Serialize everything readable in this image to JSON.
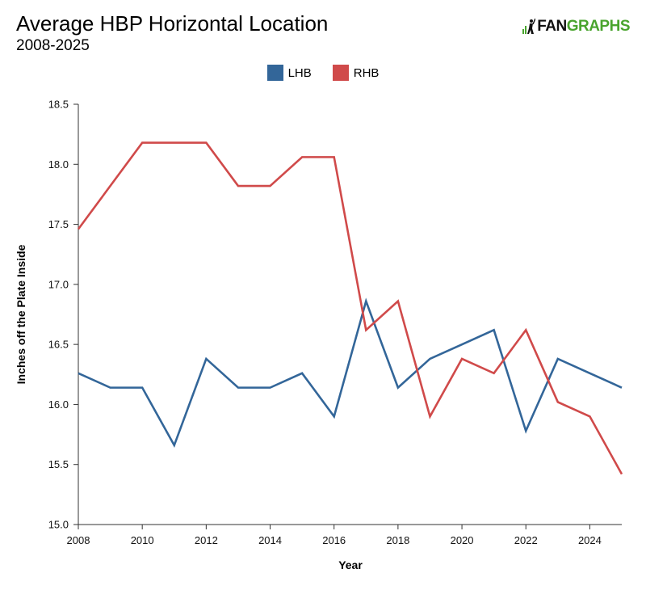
{
  "header": {
    "title": "Average HBP Horizontal Location",
    "subtitle": "2008-2025",
    "logo_fan": "FAN",
    "logo_graphs": "GRAPHS"
  },
  "colors": {
    "LHB": "#336699",
    "RHB": "#d04a4a",
    "logo_green": "#4aa42e"
  },
  "chart_data": {
    "type": "line",
    "title": "Average HBP Horizontal Location",
    "subtitle": "2008-2025",
    "xlabel": "Year",
    "ylabel": "Inches off the Plate Inside",
    "x": [
      2008,
      2009,
      2010,
      2011,
      2012,
      2013,
      2014,
      2015,
      2016,
      2017,
      2018,
      2019,
      2020,
      2021,
      2022,
      2023,
      2024,
      2025
    ],
    "xlim": [
      2008,
      2025
    ],
    "ylim": [
      15.0,
      18.5
    ],
    "x_ticks": [
      "2008",
      "2010",
      "2012",
      "2014",
      "2016",
      "2018",
      "2020",
      "2022",
      "2024"
    ],
    "y_ticks": [
      "15.0",
      "15.5",
      "16.0",
      "16.5",
      "17.0",
      "17.5",
      "18.0",
      "18.5"
    ],
    "grid": false,
    "legend_position": "top-center",
    "series": [
      {
        "name": "LHB",
        "values": [
          16.26,
          16.14,
          16.14,
          15.66,
          16.38,
          16.14,
          16.14,
          16.26,
          15.9,
          16.86,
          16.14,
          16.38,
          16.5,
          16.62,
          15.78,
          16.38,
          16.26,
          16.14
        ]
      },
      {
        "name": "RHB",
        "values": [
          17.46,
          17.82,
          18.18,
          18.18,
          18.18,
          17.82,
          17.82,
          18.06,
          18.06,
          16.62,
          16.86,
          15.9,
          16.38,
          16.26,
          16.62,
          16.02,
          15.9,
          15.42
        ]
      }
    ]
  }
}
